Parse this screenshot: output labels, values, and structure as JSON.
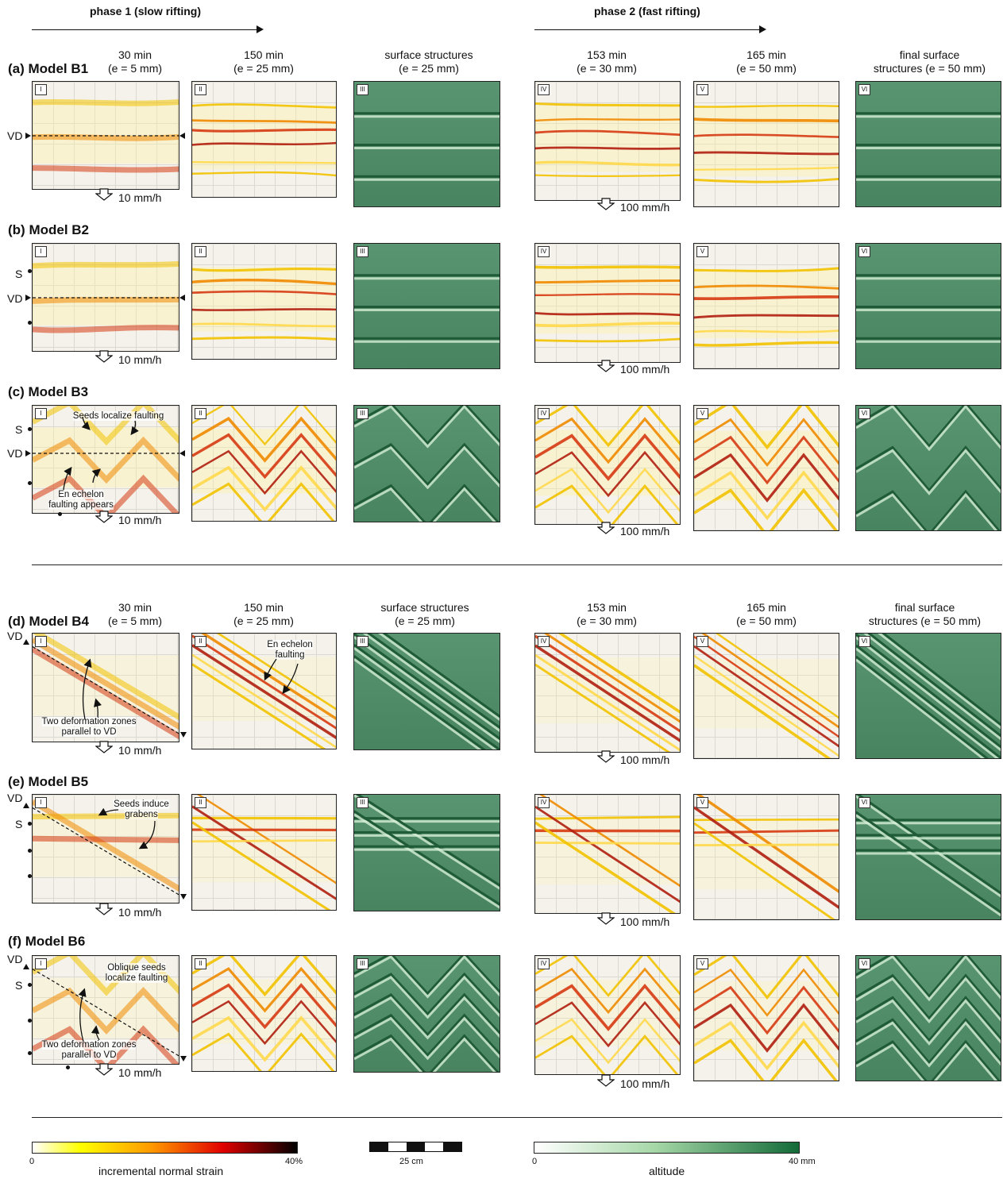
{
  "phases": {
    "phase1": "phase 1 (slow rifting)",
    "phase2": "phase 2 (fast rifting)"
  },
  "column_headers_top": [
    "30 min\n(e = 5 mm)",
    "150 min\n(e = 25 mm)",
    "surface structures\n(e = 25 mm)",
    "153 min\n(e = 30 mm)",
    "165 min\n(e = 50 mm)",
    "final surface\nstructures (e = 50 mm)"
  ],
  "column_headers_bottom": [
    "30 min\n(e = 5 mm)",
    "150 min\n(e = 25 mm)",
    "surface structures\n(e = 25 mm)",
    "153 min\n(e = 30 mm)",
    "165 min\n(e = 50 mm)",
    "final surface\nstructures (e = 50 mm)"
  ],
  "panel_numerals": [
    "I",
    "II",
    "III",
    "IV",
    "V",
    "VI"
  ],
  "models": [
    {
      "tag": "(a)",
      "name": "Model B1",
      "vel1": "10 mm/h",
      "vel2": "100 mm/h"
    },
    {
      "tag": "(b)",
      "name": "Model B2",
      "vel1": "10 mm/h",
      "vel2": "100 mm/h"
    },
    {
      "tag": "(c)",
      "name": "Model B3",
      "vel1": "10 mm/h",
      "vel2": "100 mm/h"
    },
    {
      "tag": "(d)",
      "name": "Model B4",
      "vel1": "10 mm/h",
      "vel2": "100 mm/h"
    },
    {
      "tag": "(e)",
      "name": "Model B5",
      "vel1": "10 mm/h",
      "vel2": "100 mm/h"
    },
    {
      "tag": "(f)",
      "name": "Model B6",
      "vel1": "10 mm/h",
      "vel2": "100 mm/h"
    }
  ],
  "side_labels": {
    "vd": "VD",
    "s": "S"
  },
  "annotations": {
    "b3_seeds": "Seeds localize faulting",
    "b3_enechelon": "En echelon\nfaulting appears",
    "b4_enechelon": "En echelon\nfaulting",
    "b4_zones": "Two deformation zones\nparallel to VD",
    "b5_seeds": "Seeds induce\ngrabens",
    "b6_seeds": "Oblique seeds\nlocalize faulting",
    "b6_zones": "Two deformation zones\nparallel to VD"
  },
  "legend": {
    "strain": {
      "min": "0",
      "max": "40%",
      "title": "incremental normal strain",
      "colors": [
        "#ffffff",
        "#ffff00",
        "#ff9900",
        "#e00000",
        "#000000"
      ]
    },
    "scale": {
      "label": "25 cm"
    },
    "altitude": {
      "min": "0",
      "max": "40 mm",
      "title": "altitude",
      "colors": [
        "#ffffff",
        "#a7d8a8",
        "#136b38"
      ]
    }
  }
}
